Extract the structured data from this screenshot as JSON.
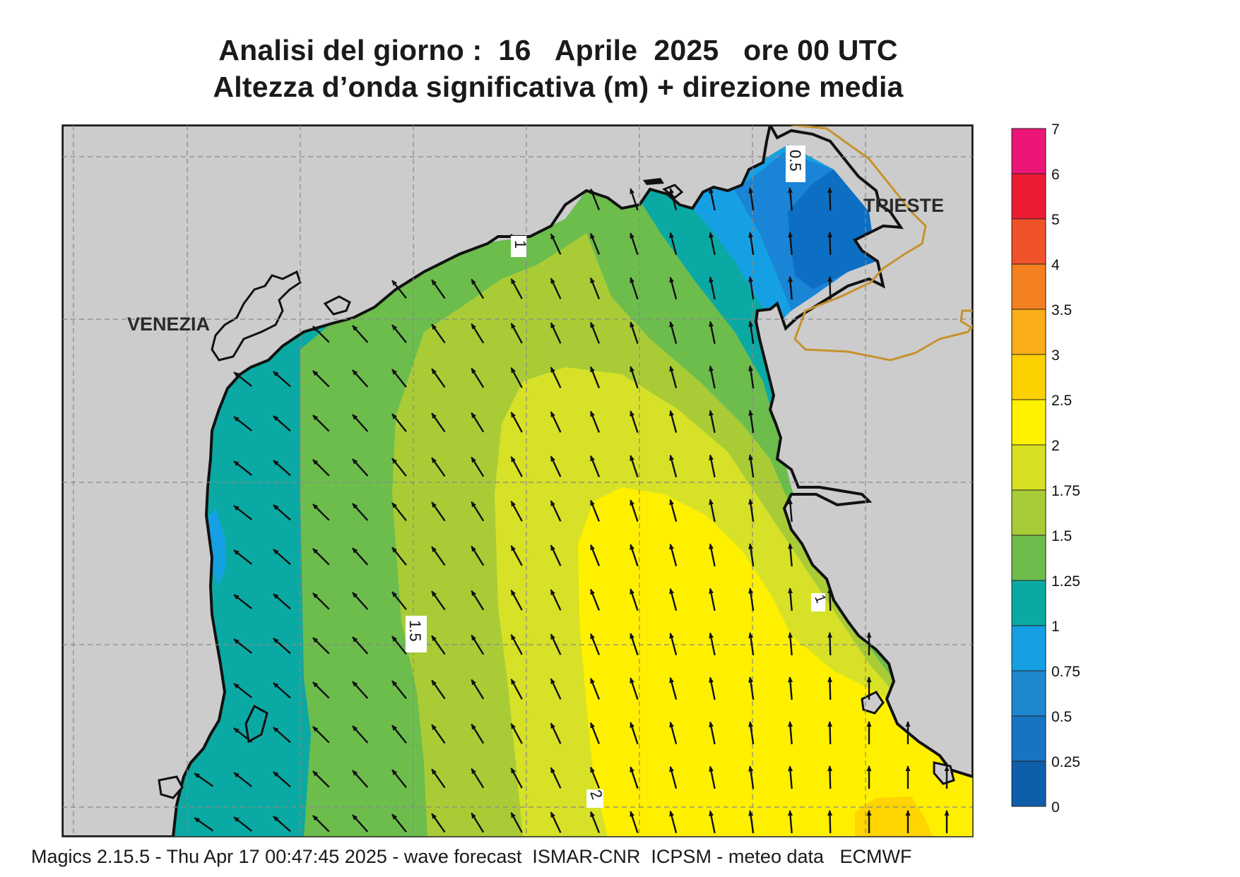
{
  "title": {
    "line1": "Analisi del giorno :  16   Aprile  2025   ore 00 UTC",
    "line2": "Altezza d’onda significativa (m) + direzione media"
  },
  "footer": "Magics 2.15.5 - Thu Apr 17 00:47:45 2025 - wave forecast  ISMAR-CNR  ICPSM - meteo data   ECMWF",
  "map": {
    "cities": [
      "VENEZIA",
      "TRIESTE"
    ],
    "contour_labels": [
      "0.5",
      "1",
      "1.5",
      "2",
      "1"
    ],
    "land_color": "#cccccc",
    "sea_band_colors": {
      "0.25-0.5": "#0d6fc3",
      "0.5-0.75": "#1a84d6",
      "0.75-1": "#16a0e4",
      "1-1.25": "#0ba9a3",
      "1.25-1.5": "#6dbd4d",
      "1.5-1.75": "#a9cc36",
      "1.75-2": "#d6e127",
      "2-2.5": "#fff000",
      "2.5-3": "#ffd400"
    },
    "arrow_direction": "towards north-west"
  },
  "colorbar": {
    "labels": [
      "7",
      "6",
      "5",
      "4",
      "3.5",
      "3",
      "2.5",
      "2",
      "1.75",
      "1.5",
      "1.25",
      "1",
      "0.75",
      "0.5",
      "0.25",
      "0"
    ],
    "colors": [
      "#eb1677",
      "#ec1c34",
      "#f0532a",
      "#f48022",
      "#fbae18",
      "#fdd000",
      "#fff200",
      "#d7e022",
      "#a8cb38",
      "#6ebd4c",
      "#0ba9a3",
      "#14a0e3",
      "#1d88cf",
      "#1674c2",
      "#0f5eab"
    ]
  }
}
